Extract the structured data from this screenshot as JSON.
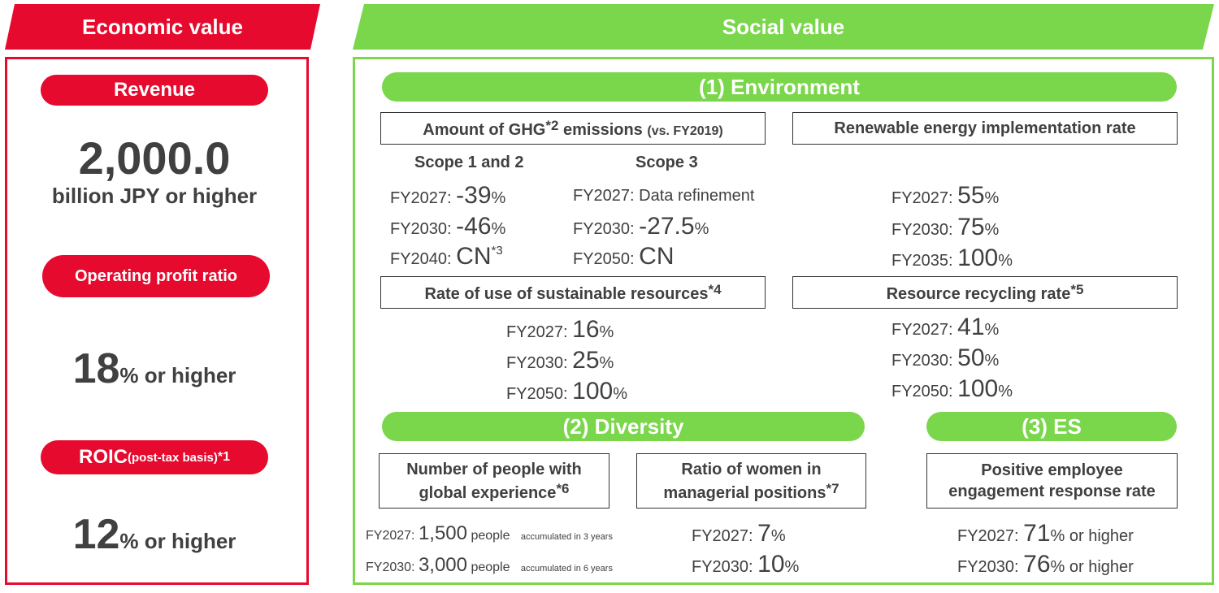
{
  "economic": {
    "banner": "Economic value",
    "revenue": {
      "label": "Revenue",
      "value": "2,000.0",
      "unit": "billion JPY or higher"
    },
    "operating_profit": {
      "label": "Operating profit ratio",
      "value": "18",
      "pct": "%",
      "suffix": " or higher"
    },
    "roic": {
      "label": "ROIC",
      "label_small": " (post-tax basis) ",
      "note": "*1",
      "value": "12",
      "pct": "%",
      "suffix": " or higher"
    }
  },
  "social": {
    "banner": "Social value",
    "environment": {
      "label": "(1) Environment",
      "ghg": {
        "title_a": "Amount of GHG",
        "note": "*2",
        "title_b": " emissions ",
        "title_small": "(vs. FY2019)",
        "scope12": {
          "label": "Scope 1 and 2",
          "rows": [
            {
              "year": "FY2027: ",
              "value": "-39",
              "pct": "%",
              "note": ""
            },
            {
              "year": "FY2030: ",
              "value": "-46",
              "pct": "%",
              "note": ""
            },
            {
              "year": "FY2040: ",
              "value": "CN",
              "pct": "",
              "note": "*3"
            }
          ]
        },
        "scope3": {
          "label": "Scope 3",
          "rows": [
            {
              "year": "FY2027: ",
              "value": "Data refinement",
              "pct": ""
            },
            {
              "year": "FY2030: ",
              "value": "-27.5",
              "pct": "%"
            },
            {
              "year": "FY2050: ",
              "value": "CN",
              "pct": ""
            }
          ]
        }
      },
      "renewable": {
        "title": "Renewable energy implementation rate",
        "rows": [
          {
            "year": "FY2027: ",
            "value": "55",
            "pct": "%"
          },
          {
            "year": "FY2030: ",
            "value": "75",
            "pct": "%"
          },
          {
            "year": "FY2035: ",
            "value": "100",
            "pct": "%"
          }
        ]
      },
      "sustainable": {
        "title": "Rate of use of sustainable resources",
        "note": "*4",
        "rows": [
          {
            "year": "FY2027: ",
            "value": "16",
            "pct": "%"
          },
          {
            "year": "FY2030: ",
            "value": "25",
            "pct": "%"
          },
          {
            "year": "FY2050: ",
            "value": "100",
            "pct": "%"
          }
        ]
      },
      "recycling": {
        "title": "Resource recycling rate",
        "note": "*5",
        "rows": [
          {
            "year": "FY2027: ",
            "value": "41",
            "pct": "%"
          },
          {
            "year": "FY2030: ",
            "value": "50",
            "pct": "%"
          },
          {
            "year": "FY2050: ",
            "value": "100",
            "pct": "%"
          }
        ]
      }
    },
    "diversity": {
      "label": "(2) Diversity",
      "global": {
        "title_line1": "Number of people with",
        "title_line2": "global experience",
        "note": "*6",
        "rows": [
          {
            "year": "FY2027: ",
            "value": "1,500",
            "unit": " people",
            "detail": "accumulated in 3 years"
          },
          {
            "year": "FY2030: ",
            "value": "3,000",
            "unit": " people",
            "detail": "accumulated in 6 years"
          }
        ]
      },
      "women": {
        "title_line1": "Ratio of women in",
        "title_line2": "managerial positions",
        "note": "*7",
        "rows": [
          {
            "year": "FY2027: ",
            "value": "7",
            "pct": "%"
          },
          {
            "year": "FY2030: ",
            "value": "10",
            "pct": "%"
          }
        ]
      }
    },
    "es": {
      "label": "(3) ES",
      "engagement": {
        "title_line1": "Positive employee",
        "title_line2": "engagement response rate",
        "rows": [
          {
            "year": "FY2027: ",
            "value": "71",
            "pct": "%",
            "suffix": " or higher"
          },
          {
            "year": "FY2030: ",
            "value": "76",
            "pct": "%",
            "suffix": " or higher"
          }
        ]
      }
    }
  },
  "colors": {
    "red": "#e60a2e",
    "green": "#7ad64a",
    "text": "#404040"
  }
}
